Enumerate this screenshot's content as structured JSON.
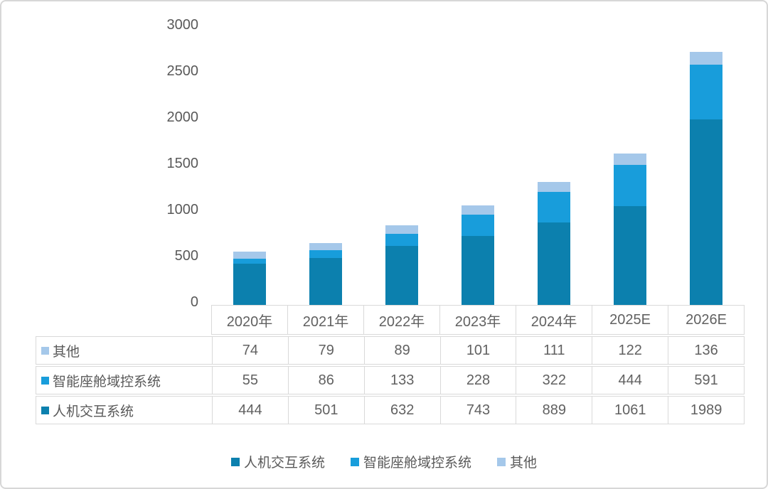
{
  "frame": {
    "background": "#ffffff",
    "border_color": "#d7d7d7"
  },
  "styles": {
    "text_color": "#595959",
    "table_border_color": "#d9d9d9"
  },
  "chart_data": {
    "type": "bar",
    "stacked": true,
    "title": "",
    "xlabel": "",
    "ylabel": "",
    "categories": [
      "2020年",
      "2021年",
      "2022年",
      "2023年",
      "2024年",
      "2025E",
      "2026E"
    ],
    "series": [
      {
        "key": "hmi",
        "name": "人机交互系统",
        "color": "#0c80ae",
        "values": [
          444,
          501,
          632,
          743,
          889,
          1061,
          1989
        ]
      },
      {
        "key": "cockpit-domain",
        "name": "智能座舱域控系统",
        "color": "#189ddb",
        "values": [
          55,
          86,
          133,
          228,
          322,
          444,
          591
        ]
      },
      {
        "key": "other",
        "name": "其他",
        "color": "#a5c8ea",
        "values": [
          74,
          79,
          89,
          101,
          111,
          122,
          136
        ]
      }
    ],
    "totals": [
      573,
      666,
      854,
      1072,
      1322,
      1627,
      2716
    ],
    "ylim": [
      0,
      3000
    ],
    "yticks": [
      0,
      500,
      1000,
      1500,
      2000,
      2500,
      3000
    ],
    "grid": false,
    "legend_position": "bottom",
    "legend_order": [
      "hmi",
      "cockpit-domain",
      "other"
    ],
    "table_row_order": [
      "other",
      "cockpit-domain",
      "hmi"
    ]
  }
}
